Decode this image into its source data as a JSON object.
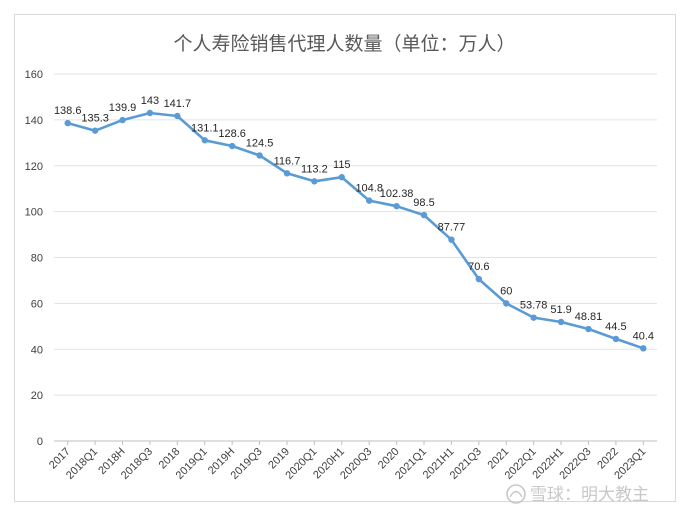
{
  "chart_data": {
    "type": "line",
    "title": "个人寿险销售代理人数量（单位：万人）",
    "xlabel": "",
    "ylabel": "",
    "ylim": [
      0,
      160
    ],
    "yticks": [
      0,
      20,
      40,
      60,
      80,
      100,
      120,
      140,
      160
    ],
    "grid": true,
    "legend": "none",
    "categories": [
      "2017",
      "2018Q1",
      "2018H",
      "2018Q3",
      "2018",
      "2019Q1",
      "2019H",
      "2019Q3",
      "2019",
      "2020Q1",
      "2020H1",
      "2020Q3",
      "2020",
      "2021Q1",
      "2021H1",
      "2021Q3",
      "2021",
      "2022Q1",
      "2022H1",
      "2022Q3",
      "2022",
      "2023Q1"
    ],
    "values": [
      138.6,
      135.3,
      139.9,
      143,
      141.7,
      131.1,
      128.6,
      124.5,
      116.7,
      113.2,
      115,
      104.8,
      102.38,
      98.5,
      87.77,
      70.6,
      60,
      53.78,
      51.9,
      48.81,
      44.5,
      40.4
    ],
    "line_color": "#5b9bd5"
  },
  "watermark": {
    "text": "雪球：明大教主"
  }
}
